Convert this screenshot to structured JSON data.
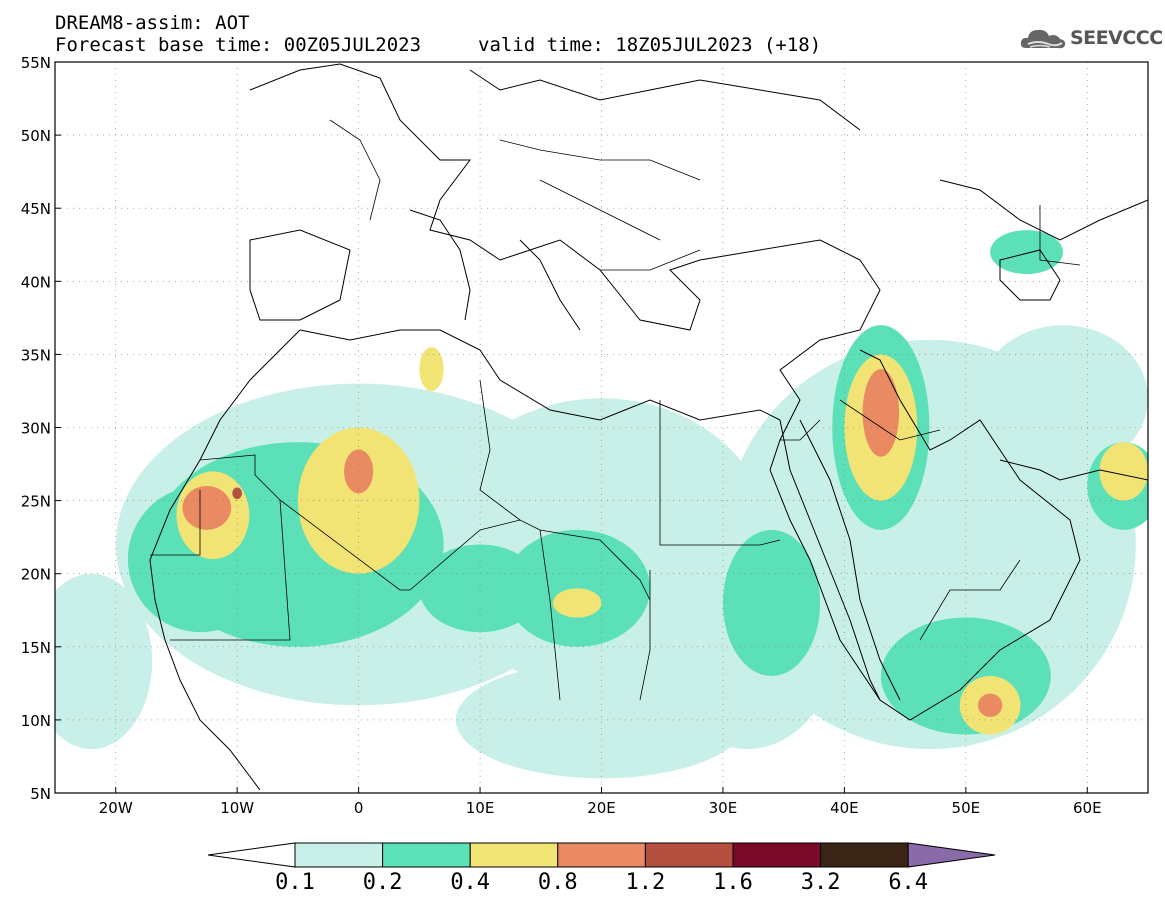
{
  "header": {
    "title": "DREAM8-assim: AOT",
    "base_time": "Forecast base time: 00Z05JUL2023",
    "valid_time": "valid time: 18Z05JUL2023 (+18)",
    "logo_text": "SEEVCCC"
  },
  "map": {
    "lon_range": [
      -25,
      65
    ],
    "lat_range": [
      5,
      55
    ],
    "lat_labels": [
      "55N",
      "50N",
      "45N",
      "40N",
      "35N",
      "30N",
      "25N",
      "20N",
      "15N",
      "10N",
      "5N"
    ],
    "lat_values": [
      55,
      50,
      45,
      40,
      35,
      30,
      25,
      20,
      15,
      10,
      5
    ],
    "lon_labels": [
      "20W",
      "10W",
      "0",
      "10E",
      "20E",
      "30E",
      "40E",
      "50E",
      "60E"
    ],
    "lon_values": [
      -20,
      -10,
      0,
      10,
      20,
      30,
      40,
      50,
      60
    ],
    "grid": true
  },
  "colorbar": {
    "levels": [
      "0.1",
      "0.2",
      "0.4",
      "0.8",
      "1.2",
      "1.6",
      "3.2",
      "6.4"
    ],
    "colors": [
      "#c8f0e8",
      "#5ce0b8",
      "#f2e474",
      "#e98a62",
      "#b55040",
      "#7a0a2a",
      "#3a2415",
      "#8a6aa8"
    ],
    "below_color": "#ffffff"
  },
  "aot_regions": [
    {
      "level": 1,
      "center": [
        0,
        22
      ],
      "radius": [
        20,
        11
      ]
    },
    {
      "level": 1,
      "center": [
        20,
        22
      ],
      "radius": [
        14,
        10
      ]
    },
    {
      "level": 1,
      "center": [
        32,
        17
      ],
      "radius": [
        8,
        9
      ]
    },
    {
      "level": 1,
      "center": [
        47,
        22
      ],
      "radius": [
        17,
        14
      ]
    },
    {
      "level": 1,
      "center": [
        -22,
        14
      ],
      "radius": [
        5,
        6
      ]
    },
    {
      "level": 1,
      "center": [
        20,
        10
      ],
      "radius": [
        12,
        4
      ]
    },
    {
      "level": 1,
      "center": [
        58,
        32
      ],
      "radius": [
        7,
        5
      ]
    },
    {
      "level": 2,
      "center": [
        -5,
        22
      ],
      "radius": [
        12,
        7
      ]
    },
    {
      "level": 2,
      "center": [
        -13,
        21
      ],
      "radius": [
        6,
        5
      ]
    },
    {
      "level": 2,
      "center": [
        18,
        19
      ],
      "radius": [
        6,
        4
      ]
    },
    {
      "level": 2,
      "center": [
        10,
        19
      ],
      "radius": [
        5,
        3
      ]
    },
    {
      "level": 2,
      "center": [
        34,
        18
      ],
      "radius": [
        4,
        5
      ]
    },
    {
      "level": 2,
      "center": [
        43,
        30
      ],
      "radius": [
        4,
        7
      ]
    },
    {
      "level": 2,
      "center": [
        50,
        13
      ],
      "radius": [
        7,
        4
      ]
    },
    {
      "level": 2,
      "center": [
        55,
        42
      ],
      "radius": [
        3,
        1.5
      ]
    },
    {
      "level": 2,
      "center": [
        63,
        26
      ],
      "radius": [
        3,
        3
      ]
    },
    {
      "level": 3,
      "center": [
        0,
        25
      ],
      "radius": [
        5,
        5
      ]
    },
    {
      "level": 3,
      "center": [
        -12,
        24
      ],
      "radius": [
        3,
        3
      ]
    },
    {
      "level": 3,
      "center": [
        43,
        30
      ],
      "radius": [
        3,
        5
      ]
    },
    {
      "level": 3,
      "center": [
        52,
        11
      ],
      "radius": [
        2.5,
        2
      ]
    },
    {
      "level": 3,
      "center": [
        18,
        18
      ],
      "radius": [
        2,
        1
      ]
    },
    {
      "level": 3,
      "center": [
        6,
        34
      ],
      "radius": [
        1,
        1.5
      ]
    },
    {
      "level": 3,
      "center": [
        63,
        27
      ],
      "radius": [
        2,
        2
      ]
    },
    {
      "level": 4,
      "center": [
        0,
        27
      ],
      "radius": [
        1.2,
        1.5
      ]
    },
    {
      "level": 4,
      "center": [
        -12.5,
        24.5
      ],
      "radius": [
        2,
        1.5
      ]
    },
    {
      "level": 4,
      "center": [
        43,
        31
      ],
      "radius": [
        1.5,
        3
      ]
    },
    {
      "level": 4,
      "center": [
        52,
        11
      ],
      "radius": [
        1,
        0.8
      ]
    },
    {
      "level": 5,
      "center": [
        -10,
        25.5
      ],
      "radius": [
        0.4,
        0.4
      ]
    }
  ]
}
